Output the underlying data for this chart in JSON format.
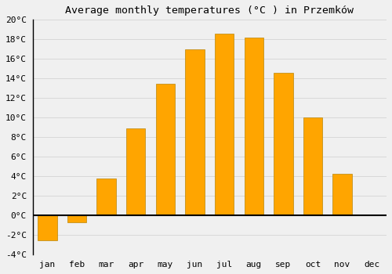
{
  "title": "Average monthly temperatures (°C ) in Przemków",
  "months": [
    "jan",
    "feb",
    "mar",
    "apr",
    "may",
    "jun",
    "jul",
    "aug",
    "sep",
    "oct",
    "nov",
    "dec"
  ],
  "values": [
    -2.5,
    -0.7,
    3.8,
    8.9,
    13.5,
    17.0,
    18.6,
    18.2,
    14.6,
    10.0,
    4.3,
    0.0
  ],
  "bar_color": "#FFA500",
  "bar_edge_color": "#B8860B",
  "background_color": "#f0f0f0",
  "grid_color": "#d8d8d8",
  "ylim": [
    -4,
    20
  ],
  "yticks": [
    -4,
    -2,
    0,
    2,
    4,
    6,
    8,
    10,
    12,
    14,
    16,
    18,
    20
  ],
  "title_fontsize": 9.5,
  "tick_fontsize": 8,
  "bar_width": 0.65
}
